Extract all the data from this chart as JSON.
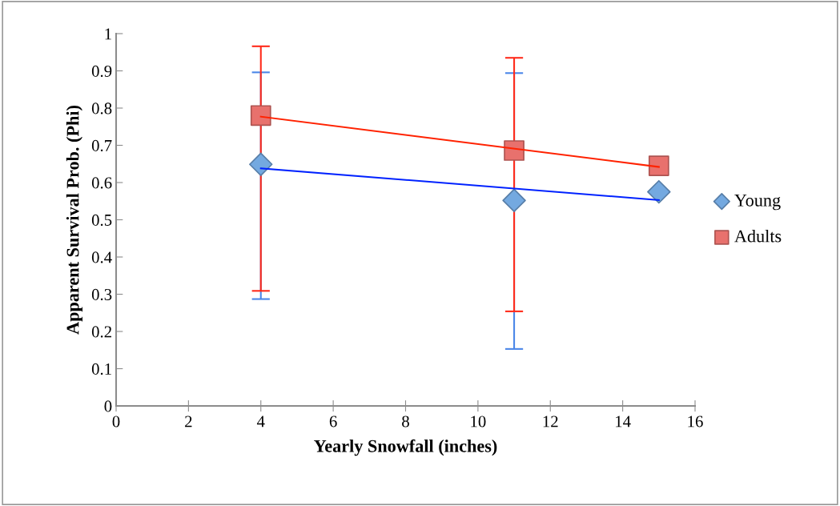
{
  "chart_data": {
    "type": "scatter",
    "xlabel": "Yearly Snowfall (inches)",
    "ylabel": "Apparent Survival Prob. (Phi)",
    "xlim": [
      0,
      16
    ],
    "xticks": [
      0,
      2,
      4,
      6,
      8,
      10,
      12,
      14,
      16
    ],
    "ylim": [
      0,
      1
    ],
    "yticks": [
      0,
      0.1,
      0.2,
      0.3,
      0.4,
      0.5,
      0.6,
      0.7,
      0.8,
      0.9,
      1
    ],
    "grid": false,
    "legend": "right",
    "series": [
      {
        "name": "Young",
        "color": "#74a9e0",
        "marker": "diamond",
        "x": [
          4,
          11,
          15
        ],
        "values": [
          0.649,
          0.552,
          0.575
        ],
        "errors": [
          [
            0.287,
            0.896
          ],
          [
            0.153,
            0.894
          ],
          null
        ]
      },
      {
        "name": "Adults",
        "color": "#e8716d",
        "marker": "square",
        "x": [
          4,
          11,
          15
        ],
        "values": [
          0.78,
          0.686,
          0.645
        ],
        "errors": [
          [
            0.309,
            0.966
          ],
          [
            0.254,
            0.935
          ],
          null
        ]
      },
      {
        "type": "line",
        "color": "#0022ff",
        "marker": "none",
        "x": [
          4,
          15
        ],
        "values": [
          0.638,
          0.553
        ]
      },
      {
        "type": "line",
        "color": "#ff2200",
        "marker": "none",
        "x": [
          4,
          15
        ],
        "values": [
          0.777,
          0.642
        ]
      }
    ]
  }
}
